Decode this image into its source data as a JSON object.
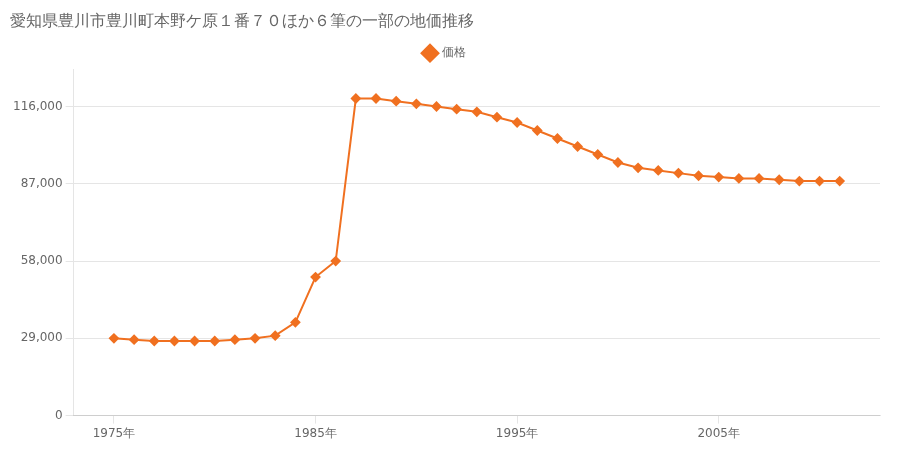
{
  "chart_data": {
    "type": "line",
    "title": "愛知県豊川市豊川町本野ケ原１番７０ほか６筆の一部の地価推移",
    "x": [
      1975,
      1976,
      1977,
      1978,
      1979,
      1980,
      1981,
      1982,
      1983,
      1984,
      1985,
      1986,
      1987,
      1988,
      1989,
      1990,
      1991,
      1992,
      1993,
      1994,
      1995,
      1996,
      1997,
      1998,
      1999,
      2000,
      2001,
      2002,
      2003,
      2004,
      2005,
      2006,
      2007,
      2008,
      2009,
      2010,
      2011
    ],
    "series": [
      {
        "name": "価格",
        "color": "#f07020",
        "marker": "diamond",
        "values": [
          29000,
          28500,
          28000,
          28000,
          28000,
          28000,
          28500,
          29000,
          30000,
          35000,
          52000,
          58000,
          119000,
          119000,
          118000,
          117000,
          116000,
          115000,
          114000,
          112000,
          110000,
          107000,
          104000,
          101000,
          98000,
          95000,
          93000,
          92000,
          91000,
          90000,
          89500,
          89000,
          89000,
          88500,
          88000,
          88000,
          88000
        ]
      }
    ],
    "xlim": [
      1973,
      2013
    ],
    "xticks": [
      {
        "value": 1975,
        "label": "1975年"
      },
      {
        "value": 1985,
        "label": "1985年"
      },
      {
        "value": 1995,
        "label": "1995年"
      },
      {
        "value": 2005,
        "label": "2005年"
      }
    ],
    "ylim": [
      0,
      130000
    ],
    "yticks": [
      0,
      {
        "value": 29000,
        "label": "29,000"
      },
      {
        "value": 58000,
        "label": "58,000"
      },
      {
        "value": 87000,
        "label": "87,000"
      },
      {
        "value": 116000,
        "label": "116,000"
      }
    ],
    "grid": "y",
    "legend": "top"
  }
}
